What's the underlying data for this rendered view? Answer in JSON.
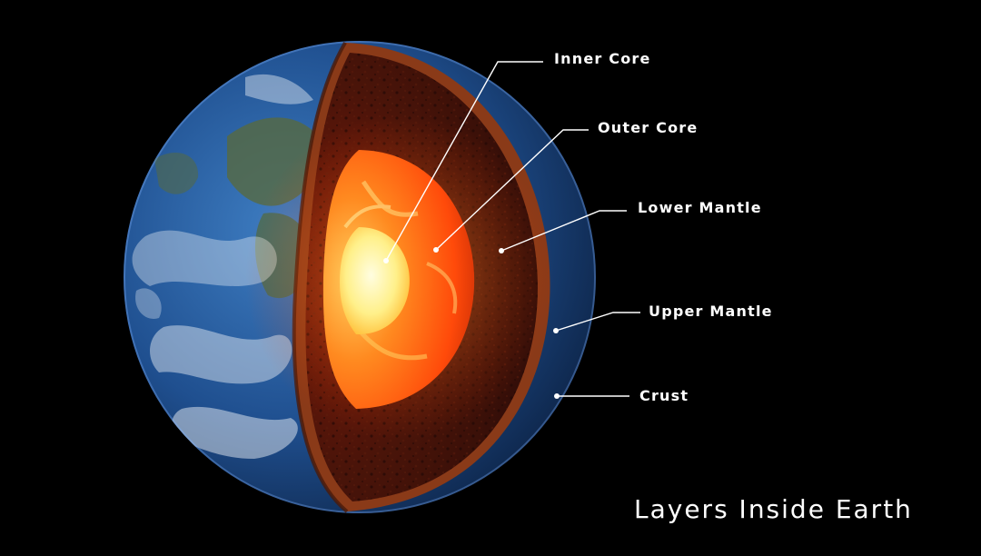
{
  "title": "Layers Inside Earth",
  "labels": {
    "inner_core": "Inner Core",
    "outer_core": "Outer Core",
    "lower_mantle": "Lower Mantle",
    "upper_mantle": "Upper Mantle",
    "crust": "Crust"
  },
  "colors": {
    "background": "#000000",
    "ocean": "#1f4f8f",
    "mantle": "#3a0f0a",
    "crust_edge": "#8a3a18",
    "outer_core": "#ff5a10",
    "inner_core": "#fff3a8",
    "label_text": "#ffffff"
  }
}
